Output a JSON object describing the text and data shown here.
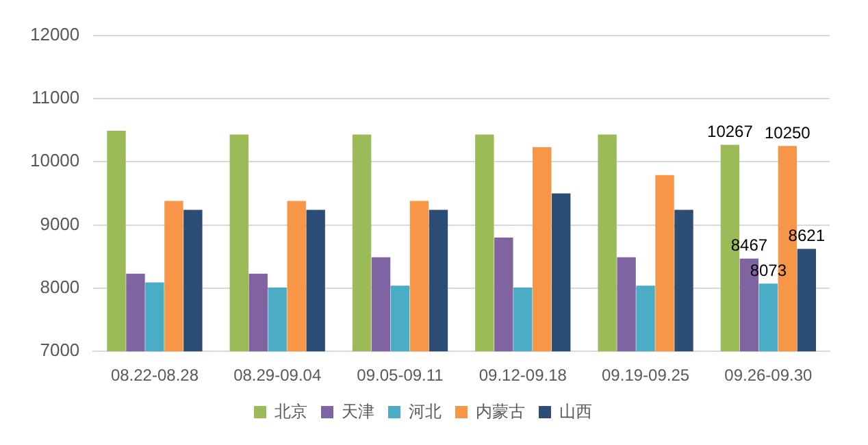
{
  "chart_data": {
    "type": "bar",
    "categories": [
      "08.22-08.28",
      "08.29-09.04",
      "09.05-09.11",
      "09.12-09.18",
      "09.19-09.25",
      "09.26-09.30"
    ],
    "series": [
      {
        "name": "北京",
        "color": "#9bbb59",
        "values": [
          10490,
          10430,
          10430,
          10430,
          10430,
          10267
        ],
        "value_labels": [
          null,
          null,
          null,
          null,
          null,
          "10267"
        ]
      },
      {
        "name": "天津",
        "color": "#8064a2",
        "values": [
          8230,
          8230,
          8490,
          8800,
          8490,
          8467
        ],
        "value_labels": [
          null,
          null,
          null,
          null,
          null,
          "8467"
        ]
      },
      {
        "name": "河北",
        "color": "#4bacc6",
        "values": [
          8090,
          8010,
          8040,
          8010,
          8040,
          8073
        ],
        "value_labels": [
          null,
          null,
          null,
          null,
          null,
          "8073"
        ]
      },
      {
        "name": "内蒙古",
        "color": "#f79646",
        "values": [
          9380,
          9380,
          9380,
          10230,
          9790,
          10250
        ],
        "value_labels": [
          null,
          null,
          null,
          null,
          null,
          "10250"
        ]
      },
      {
        "name": "山西",
        "color": "#2c4d75",
        "values": [
          9240,
          9240,
          9240,
          9500,
          9240,
          8621
        ],
        "value_labels": [
          null,
          null,
          null,
          null,
          null,
          "8621"
        ]
      }
    ],
    "ylim": [
      7000,
      12000
    ],
    "yticks": [
      7000,
      8000,
      9000,
      10000,
      11000,
      12000
    ],
    "grid": "y",
    "legend": "bottom"
  }
}
